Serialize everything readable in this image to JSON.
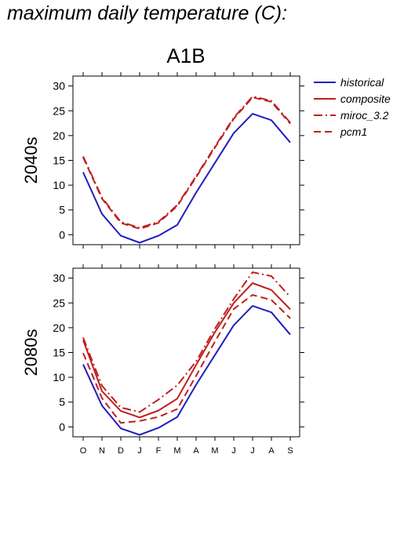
{
  "title": "maximum daily temperature (C):",
  "colors": {
    "historical": "#1f1fbf",
    "future": "#bf1f1f",
    "axis": "#000000"
  },
  "chart_data": {
    "type": "line",
    "scenario": "A1B",
    "categories": [
      "O",
      "N",
      "D",
      "J",
      "F",
      "M",
      "A",
      "M",
      "J",
      "J",
      "A",
      "S"
    ],
    "ylim": [
      -2,
      32
    ],
    "yticks": [
      0,
      5,
      10,
      15,
      20,
      25,
      30
    ],
    "legend": [
      {
        "name": "historical",
        "style": "solid",
        "color": "historical"
      },
      {
        "name": "composite",
        "style": "solid",
        "color": "future"
      },
      {
        "name": "miroc_3.2",
        "style": "dashdot",
        "color": "future"
      },
      {
        "name": "pcm1",
        "style": "dashed",
        "color": "future"
      }
    ],
    "panels": [
      {
        "label": "2040s",
        "series": [
          {
            "name": "historical",
            "values": [
              12.6,
              4.2,
              -0.2,
              -1.6,
              -0.2,
              2.0,
              8.5,
              14.5,
              20.5,
              24.4,
              23.1,
              18.6
            ]
          },
          {
            "name": "miroc_3.2",
            "values": [
              15.8,
              7.5,
              2.6,
              1.4,
              2.6,
              6.0,
              11.8,
              17.8,
              23.6,
              27.9,
              27.0,
              22.6
            ]
          },
          {
            "name": "pcm1",
            "values": [
              15.6,
              7.3,
              2.4,
              1.2,
              2.4,
              5.8,
              11.6,
              17.6,
              23.4,
              27.7,
              26.8,
              22.4
            ]
          }
        ]
      },
      {
        "label": "2080s",
        "series": [
          {
            "name": "historical",
            "values": [
              12.6,
              4.3,
              -0.3,
              -1.6,
              -0.2,
              2.0,
              8.5,
              14.5,
              20.5,
              24.4,
              23.1,
              18.6
            ]
          },
          {
            "name": "composite",
            "values": [
              17.5,
              7.2,
              3.2,
              1.9,
              3.3,
              5.7,
              12.5,
              19.1,
              25.0,
              29.0,
              27.6,
              23.7
            ]
          },
          {
            "name": "miroc_3.2",
            "values": [
              18.0,
              8.3,
              3.9,
              3.0,
              5.5,
              8.4,
              13.2,
              19.8,
              25.8,
              31.2,
              30.4,
              26.2
            ]
          },
          {
            "name": "pcm1",
            "values": [
              14.9,
              5.8,
              0.8,
              1.2,
              2.0,
              3.6,
              10.3,
              17.2,
              23.8,
              26.6,
              25.6,
              21.9
            ]
          }
        ]
      }
    ]
  }
}
